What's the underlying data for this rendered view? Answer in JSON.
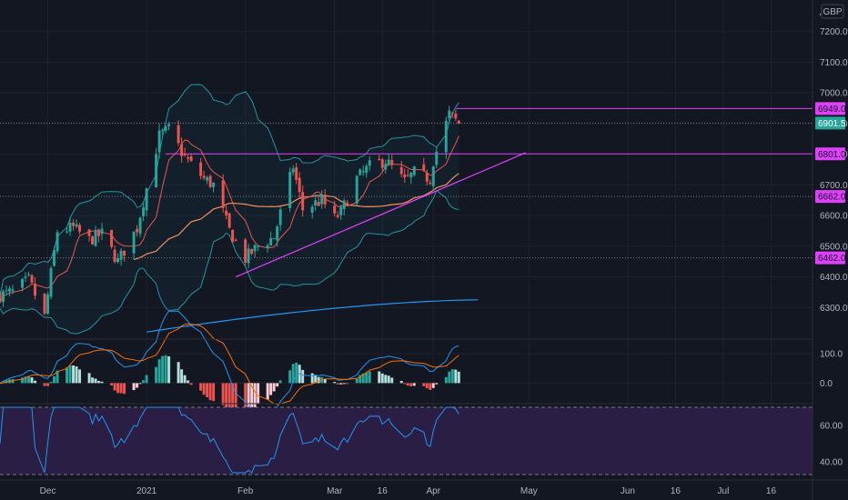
{
  "currency": "GBP",
  "chart_data": [
    {
      "type": "candlestick",
      "panel": "price",
      "ylim": [
        6200,
        7300
      ],
      "y_ticks": [
        6300,
        6400,
        6500,
        6600,
        6700,
        6800,
        6900,
        7000,
        7100,
        7200
      ],
      "y_tick_labels": [
        "6300.0",
        "6400.0",
        "6500.0",
        "6600.0",
        "6700.0",
        "6800.0",
        "6900.0",
        "7000.0",
        "7100.0",
        "7200.0"
      ],
      "x_ticks": [
        {
          "label": "Dec",
          "date": "2020-12-01"
        },
        {
          "label": "2021",
          "date": "2021-01-01"
        },
        {
          "label": "Feb",
          "date": "2021-02-01"
        },
        {
          "label": "Mar",
          "date": "2021-03-01"
        },
        {
          "label": "16",
          "date": "2021-03-16"
        },
        {
          "label": "Apr",
          "date": "2021-04-01"
        },
        {
          "label": "May",
          "date": "2021-05-01"
        },
        {
          "label": "Jun",
          "date": "2021-06-01"
        },
        {
          "label": "16",
          "date": "2021-06-16"
        },
        {
          "label": "Jul",
          "date": "2021-07-01"
        },
        {
          "label": "16",
          "date": "2021-07-16"
        }
      ],
      "x_range": [
        "2020-11-16",
        "2021-07-29"
      ],
      "close_anchors": [
        [
          "2020-11-16",
          6340
        ],
        [
          "2020-11-20",
          6350
        ],
        [
          "2020-11-25",
          6390
        ],
        [
          "2020-11-30",
          6270
        ],
        [
          "2020-12-04",
          6550
        ],
        [
          "2020-12-09",
          6560
        ],
        [
          "2020-12-14",
          6520
        ],
        [
          "2020-12-18",
          6540
        ],
        [
          "2020-12-23",
          6450
        ],
        [
          "2020-12-29",
          6560
        ],
        [
          "2021-01-05",
          6860
        ],
        [
          "2021-01-08",
          6880
        ],
        [
          "2021-01-13",
          6790
        ],
        [
          "2021-01-19",
          6720
        ],
        [
          "2021-01-22",
          6700
        ],
        [
          "2021-01-27",
          6550
        ],
        [
          "2021-02-01",
          6460
        ],
        [
          "2021-02-05",
          6500
        ],
        [
          "2021-02-10",
          6530
        ],
        [
          "2021-02-16",
          6760
        ],
        [
          "2021-02-19",
          6620
        ],
        [
          "2021-02-25",
          6650
        ],
        [
          "2021-03-01",
          6590
        ],
        [
          "2021-03-03",
          6610
        ],
        [
          "2021-03-08",
          6720
        ],
        [
          "2021-03-12",
          6760
        ],
        [
          "2021-03-17",
          6780
        ],
        [
          "2021-03-23",
          6710
        ],
        [
          "2021-03-26",
          6740
        ],
        [
          "2021-03-31",
          6720
        ],
        [
          "2021-04-01",
          6780
        ],
        [
          "2021-04-06",
          6930
        ],
        [
          "2021-04-09",
          6900
        ]
      ],
      "levels": [
        {
          "label": "6949.0",
          "value": 6949,
          "from": "2021-04-08",
          "style": "solid"
        },
        {
          "label": "6901.5",
          "value": 6901.5,
          "from": "2020-11-16",
          "style": "dotted",
          "current": true
        },
        {
          "label": "6801.0",
          "value": 6801,
          "from": "2021-01-07",
          "style": "solid"
        },
        {
          "label": "6662.0",
          "value": 6662,
          "from": "2020-11-16",
          "style": "dotted"
        },
        {
          "label": "6462.0",
          "value": 6462,
          "from": "2020-11-16",
          "style": "dotted"
        }
      ],
      "trendline": {
        "from": [
          "2021-01-29",
          6400
        ],
        "to": [
          "2021-04-30",
          6805
        ]
      },
      "ma_long_start": [
        "2021-01-01",
        6220
      ],
      "ma_long_end": [
        "2021-04-15",
        6325
      ]
    },
    {
      "type": "macd",
      "panel": "macd",
      "ylim": [
        -70,
        150
      ],
      "y_ticks": [
        0,
        100
      ],
      "y_tick_labels": [
        "0.0",
        "100.0"
      ]
    },
    {
      "type": "line",
      "panel": "rsi",
      "ylim": [
        30,
        72
      ],
      "y_ticks": [
        40,
        60
      ],
      "y_tick_labels": [
        "40.00",
        "60.00"
      ],
      "band": [
        33,
        70
      ]
    }
  ],
  "colors": {
    "background": "#131722",
    "grid": "#1e222d",
    "up": "#26a69a",
    "down": "#ef5350",
    "level": "#e040fb",
    "bollinger": "#2196a3",
    "ma_fast": "#ef5350",
    "ma_mid": "#f48f5a",
    "ma_long": "#2196f3",
    "rsi": "#2196f3",
    "rsi_band": "#2a1e45",
    "current_tag": "#26a69a"
  }
}
